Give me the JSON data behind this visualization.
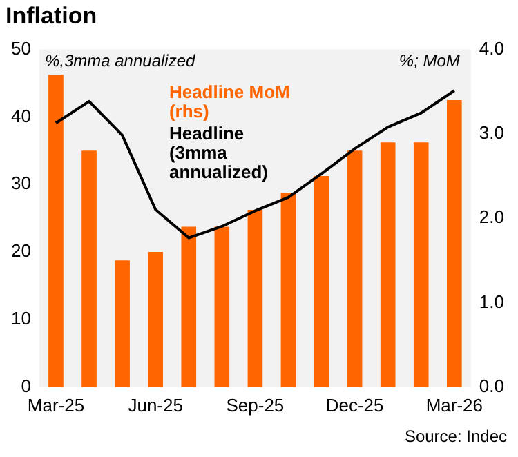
{
  "chart_data": {
    "type": "bar",
    "title": "Inflation",
    "categories": [
      "Mar-25",
      null,
      null,
      "Jun-25",
      null,
      null,
      "Sep-25",
      null,
      null,
      "Dec-25",
      null,
      null,
      "Mar-26"
    ],
    "series": [
      {
        "name": "Headline MoM (rhs)",
        "axis": "y2",
        "color": "#ff6600",
        "values": [
          3.7,
          2.8,
          1.5,
          1.6,
          1.9,
          1.9,
          2.1,
          2.3,
          2.5,
          2.8,
          2.9,
          2.9,
          3.4
        ]
      },
      {
        "name": "Headline (3mma annualized)",
        "type": "line",
        "color": "#000000",
        "values": [
          39.1,
          42.3,
          37.3,
          26.3,
          22.1,
          23.8,
          26.1,
          28.1,
          31.6,
          35.3,
          38.5,
          40.6,
          43.9
        ]
      }
    ],
    "ylabel": "%,3mma annualized",
    "y2label": "%; MoM",
    "ylim": [
      0,
      50
    ],
    "yticks": [
      0,
      10,
      20,
      30,
      40,
      50
    ],
    "y2lim": [
      0,
      4
    ],
    "y2ticks": [
      {
        "value": 0,
        "label": "0.0"
      },
      {
        "value": 1,
        "label": "1.0"
      },
      {
        "value": 2,
        "label": "2.0"
      },
      {
        "value": 3,
        "label": "3.0"
      },
      {
        "value": 4,
        "label": "4.0"
      }
    ],
    "grid": false,
    "legend": "top",
    "marker": "none",
    "line_style": "solid",
    "annotations": [
      "Source: Indec"
    ]
  }
}
